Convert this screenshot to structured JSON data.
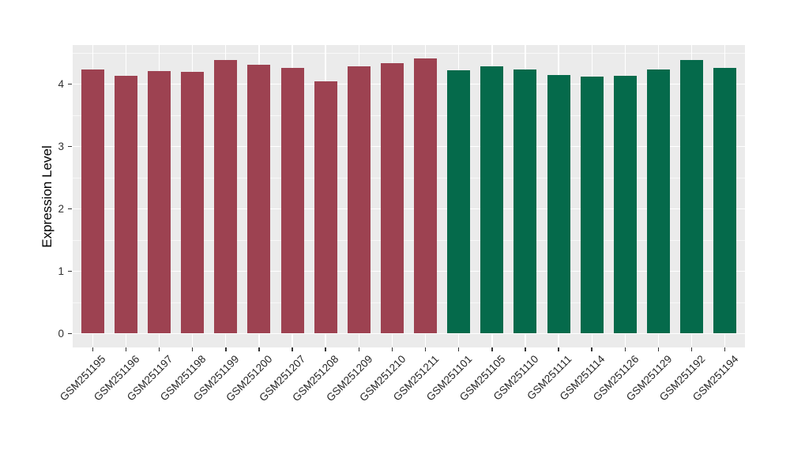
{
  "chart_data": {
    "type": "bar",
    "title": "",
    "xlabel": "",
    "ylabel": "Expression Level",
    "ylim": [
      0,
      4.62
    ],
    "yticks": [
      0,
      1,
      2,
      3,
      4
    ],
    "yticks_minor": [
      0.5,
      1.5,
      2.5,
      3.5,
      4.5
    ],
    "grid": "white major+minor horizontal, white vertical at category centers, on gray panel",
    "legend": false,
    "categories": [
      "GSM251195",
      "GSM251196",
      "GSM251197",
      "GSM251198",
      "GSM251199",
      "GSM251200",
      "GSM251207",
      "GSM251208",
      "GSM251209",
      "GSM251210",
      "GSM251211",
      "GSM251101",
      "GSM251105",
      "GSM251110",
      "GSM251111",
      "GSM251114",
      "GSM251126",
      "GSM251129",
      "GSM251192",
      "GSM251194"
    ],
    "values": [
      4.24,
      4.13,
      4.21,
      4.2,
      4.39,
      4.31,
      4.26,
      4.04,
      4.29,
      4.34,
      4.41,
      4.22,
      4.28,
      4.24,
      4.15,
      4.12,
      4.13,
      4.23,
      4.38,
      4.26
    ],
    "group_of": [
      0,
      0,
      0,
      0,
      0,
      0,
      0,
      0,
      0,
      0,
      0,
      1,
      1,
      1,
      1,
      1,
      1,
      1,
      1,
      1
    ],
    "groups": [
      {
        "color": "#9D4251"
      },
      {
        "color": "#056A4B"
      }
    ],
    "colors": {
      "panel_background": "#EBEBEB",
      "gridline": "#FFFFFF",
      "tick_mark": "#333333",
      "tick_label": "#303030",
      "axis_title": "#000000",
      "figure_background": "#FFFFFF"
    }
  }
}
